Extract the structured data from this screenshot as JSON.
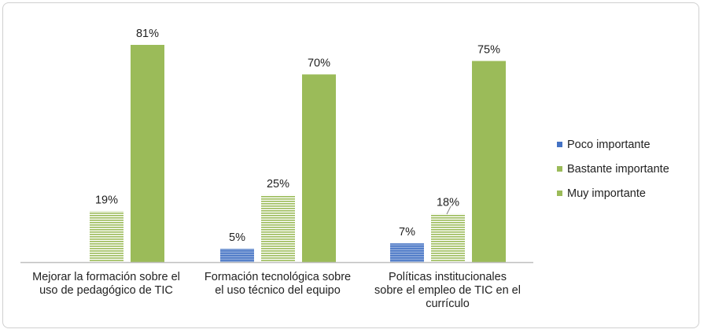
{
  "chart_data": {
    "type": "bar",
    "categories": [
      "Mejorar la formación sobre el\nuso de pedagógico de TIC",
      "Formación tecnológica sobre\nel uso técnico del equipo",
      "Políticas institucionales\nsobre el empleo de TIC en el\ncurrículo"
    ],
    "series": [
      {
        "name": "Poco importante",
        "values": [
          null,
          5,
          7
        ],
        "labels": [
          "",
          "5%",
          "7%"
        ],
        "color": "#4472c4",
        "pattern": "hatched"
      },
      {
        "name": "Bastante importante",
        "values": [
          19,
          25,
          18
        ],
        "labels": [
          "19%",
          "25%",
          "18%"
        ],
        "color": "#9bbb59",
        "pattern": "hatched"
      },
      {
        "name": "Muy importante",
        "values": [
          81,
          70,
          75
        ],
        "labels": [
          "81%",
          "70%",
          "75%"
        ],
        "color": "#9bbb59",
        "pattern": "solid"
      }
    ],
    "ylim": [
      0,
      81
    ],
    "grid": false,
    "legend": "right"
  }
}
